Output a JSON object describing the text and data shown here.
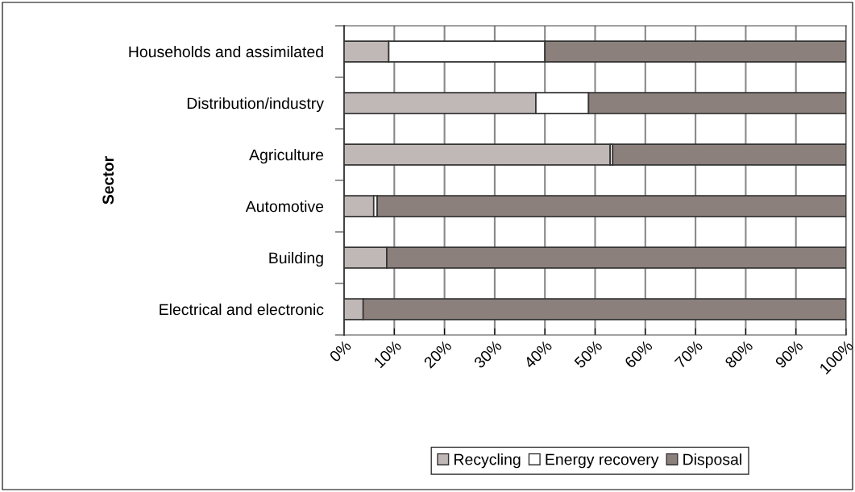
{
  "chart_data": {
    "type": "bar",
    "orientation": "horizontal",
    "stacked": true,
    "ylabel": "Sector",
    "categories": [
      "Households and assimilated",
      "Distribution/industry",
      "Agriculture",
      "Automotive",
      "Building",
      "Electrical and electronic"
    ],
    "series": [
      {
        "name": "Recycling",
        "color": "#c0b8b6",
        "values": [
          8.9,
          38.2,
          53.0,
          5.9,
          8.5,
          3.8
        ]
      },
      {
        "name": "Energy recovery",
        "color": "#ffffff",
        "values": [
          31.1,
          10.5,
          0.5,
          0.7,
          null,
          null
        ]
      },
      {
        "name": "Disposal",
        "color": "#8c807c",
        "values": [
          60.0,
          51.3,
          46.5,
          93.4,
          91.5,
          96.2
        ]
      }
    ],
    "xlim": [
      0,
      100
    ],
    "xticks": [
      {
        "value": 0,
        "label": "0%"
      },
      {
        "value": 10,
        "label": "10%"
      },
      {
        "value": 20,
        "label": "20%"
      },
      {
        "value": 30,
        "label": "30%"
      },
      {
        "value": 40,
        "label": "40%"
      },
      {
        "value": 50,
        "label": "50%"
      },
      {
        "value": 60,
        "label": "60%"
      },
      {
        "value": 70,
        "label": "70%"
      },
      {
        "value": 80,
        "label": "80%"
      },
      {
        "value": 90,
        "label": "90%"
      },
      {
        "value": 100,
        "label": "100%"
      }
    ],
    "grid": "x",
    "legend": "bottom"
  }
}
